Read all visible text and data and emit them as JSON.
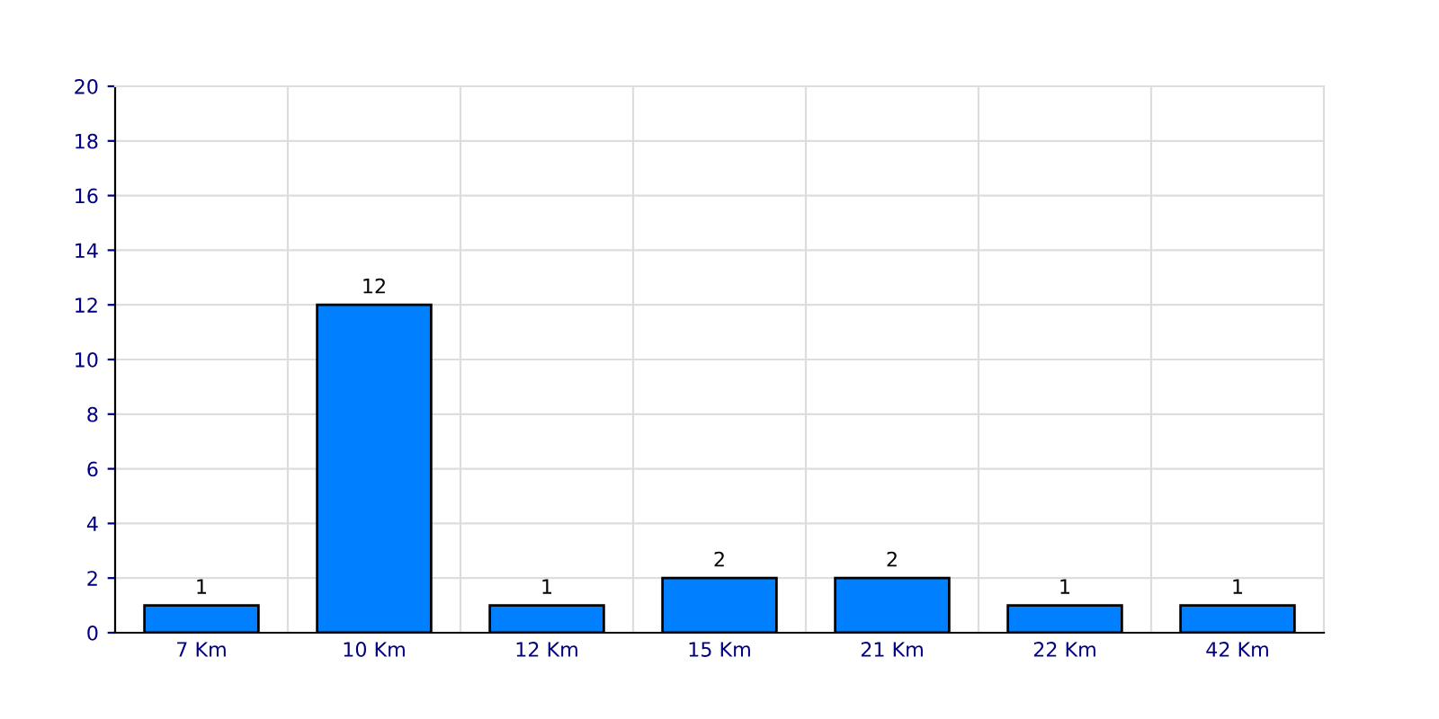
{
  "chart_data": {
    "type": "bar",
    "categories": [
      "7 Km",
      "10 Km",
      "12 Km",
      "15 Km",
      "21 Km",
      "22 Km",
      "42 Km"
    ],
    "values": [
      1,
      12,
      1,
      2,
      2,
      1,
      1
    ],
    "color": "#0080ff",
    "ylim": [
      0,
      20
    ],
    "yticks": [
      0,
      2,
      4,
      6,
      8,
      10,
      12,
      14,
      16,
      18,
      20
    ],
    "grid": true,
    "data_labels": true
  }
}
